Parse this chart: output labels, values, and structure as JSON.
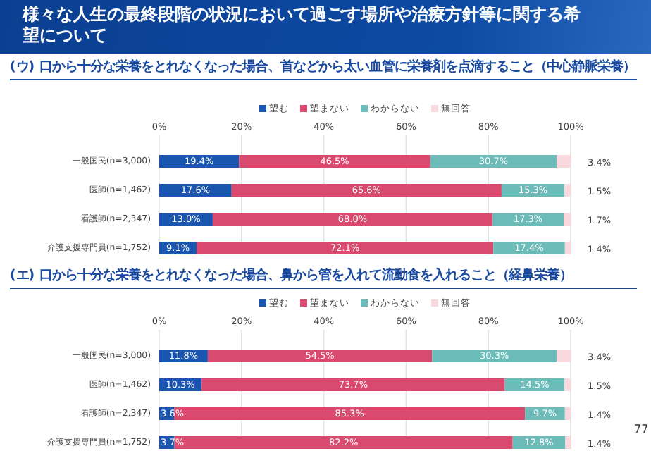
{
  "chart_data": [
    {
      "type": "bar",
      "orientation": "horizontal",
      "stacked": true,
      "title": "(ウ) 口から十分な栄養をとれなくなった場合、首などから太い血管に栄養剤を点滴すること（中心静脈栄養）",
      "annotations": [
        "様々な人生の最終段階の状況において過ごす場所や治療方針等に関する希望について"
      ],
      "categories": [
        "一般国民(n=3,000)",
        "医師(n=1,462)",
        "看護師(n=2,347)",
        "介護支援専門員(n=1,752)"
      ],
      "series": [
        {
          "name": "望む",
          "color": "#1a56b0",
          "values": [
            19.4,
            17.6,
            13.0,
            9.1
          ],
          "value_labels": [
            "19.4%",
            "17.6%",
            "13.0%",
            "9.1%"
          ]
        },
        {
          "name": "望まない",
          "color": "#d94a6e",
          "values": [
            46.5,
            65.6,
            68.0,
            72.1
          ],
          "value_labels": [
            "46.5%",
            "65.6%",
            "68.0%",
            "72.1%"
          ]
        },
        {
          "name": "わからない",
          "color": "#6bbcb8",
          "values": [
            30.7,
            15.3,
            17.3,
            17.4
          ],
          "value_labels": [
            "30.7%",
            "15.3%",
            "17.3%",
            "17.4%"
          ]
        },
        {
          "name": "無回答",
          "color": "#f9d9de",
          "values": [
            3.4,
            1.5,
            1.7,
            1.4
          ],
          "value_labels": [
            "3.4%",
            "1.5%",
            "1.7%",
            "1.4%"
          ]
        }
      ],
      "xlim": [
        0,
        100
      ],
      "xticks": [
        {
          "value": 0,
          "label": "0%"
        },
        {
          "value": 20,
          "label": "20%"
        },
        {
          "value": 40,
          "label": "40%"
        },
        {
          "value": 60,
          "label": "60%"
        },
        {
          "value": 80,
          "label": "80%"
        },
        {
          "value": 100,
          "label": "100%"
        }
      ],
      "grid": "x",
      "legend": "top"
    },
    {
      "type": "bar",
      "orientation": "horizontal",
      "stacked": true,
      "title": "(エ) 口から十分な栄養をとれなくなった場合、鼻から管を入れて流動食を入れること（経鼻栄養）",
      "annotations": [
        "77"
      ],
      "categories": [
        "一般国民(n=3,000)",
        "医師(n=1,462)",
        "看護師(n=2,347)",
        "介護支援専門員(n=1,752)"
      ],
      "series": [
        {
          "name": "望む",
          "color": "#1a56b0",
          "values": [
            11.8,
            10.3,
            3.6,
            3.7
          ],
          "value_labels": [
            "11.8%",
            "10.3%",
            "3.6%",
            "3.7%"
          ]
        },
        {
          "name": "望まない",
          "color": "#d94a6e",
          "values": [
            54.5,
            73.7,
            85.3,
            82.2
          ],
          "value_labels": [
            "54.5%",
            "73.7%",
            "85.3%",
            "82.2%"
          ]
        },
        {
          "name": "わからない",
          "color": "#6bbcb8",
          "values": [
            30.3,
            14.5,
            9.7,
            12.8
          ],
          "value_labels": [
            "30.3%",
            "14.5%",
            "9.7%",
            "12.8%"
          ]
        },
        {
          "name": "無回答",
          "color": "#f9d9de",
          "values": [
            3.4,
            1.5,
            1.4,
            1.4
          ],
          "value_labels": [
            "3.4%",
            "1.5%",
            "1.4%",
            "1.4%"
          ]
        }
      ],
      "xlim": [
        0,
        100
      ],
      "xticks": [
        {
          "value": 0,
          "label": "0%"
        },
        {
          "value": 20,
          "label": "20%"
        },
        {
          "value": 40,
          "label": "40%"
        },
        {
          "value": 60,
          "label": "60%"
        },
        {
          "value": 80,
          "label": "80%"
        },
        {
          "value": 100,
          "label": "100%"
        }
      ],
      "grid": "x",
      "legend": "top"
    }
  ]
}
